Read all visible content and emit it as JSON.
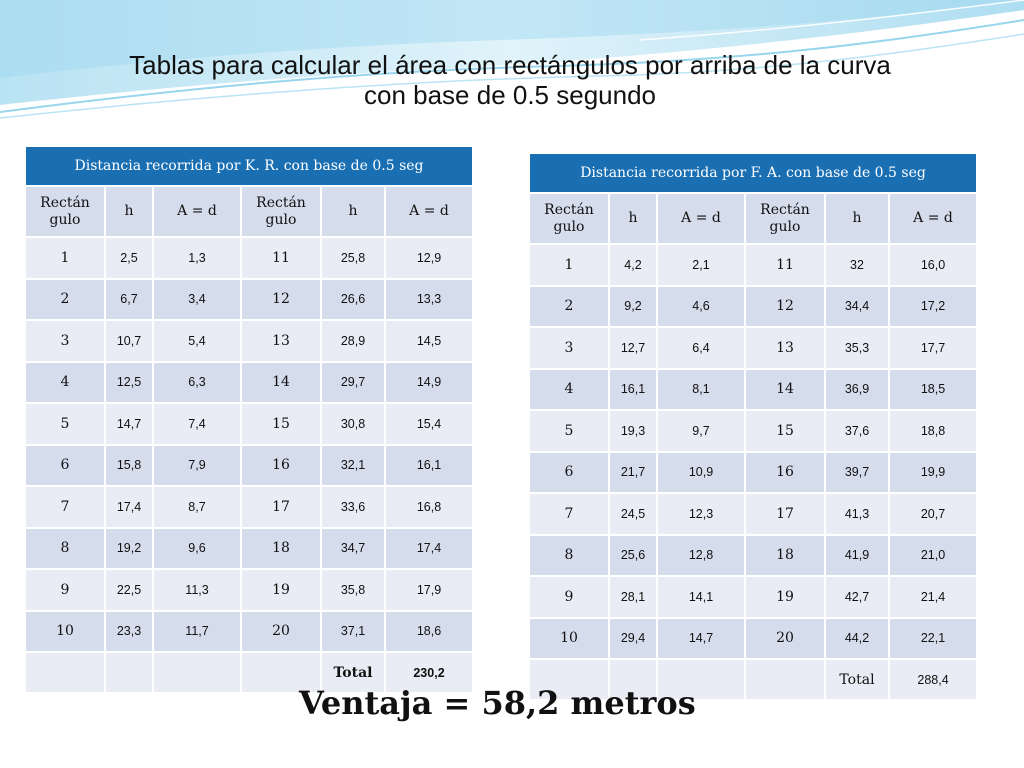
{
  "title": {
    "line1": "Tablas para calcular el área con rectángulos por arriba de la curva",
    "line2": "con base de 0.5 segundo"
  },
  "colors": {
    "table_header": "#1a6fb3",
    "row_dark": "#d5dcec",
    "row_light": "#e9ecf4",
    "wave_light": "#bfe3f3",
    "wave_dark": "#5ab8e0"
  },
  "table_kr": {
    "caption": "Distancia recorrida por K. R. con base de 0.5 seg",
    "headers": [
      "Rectán gulo",
      "h",
      "A = d",
      "Rectán gulo",
      "h",
      "A = d"
    ],
    "rows": [
      [
        "1",
        "2,5",
        "1,3",
        "11",
        "25,8",
        "12,9"
      ],
      [
        "2",
        "6,7",
        "3,4",
        "12",
        "26,6",
        "13,3"
      ],
      [
        "3",
        "10,7",
        "5,4",
        "13",
        "28,9",
        "14,5"
      ],
      [
        "4",
        "12,5",
        "6,3",
        "14",
        "29,7",
        "14,9"
      ],
      [
        "5",
        "14,7",
        "7,4",
        "15",
        "30,8",
        "15,4"
      ],
      [
        "6",
        "15,8",
        "7,9",
        "16",
        "32,1",
        "16,1"
      ],
      [
        "7",
        "17,4",
        "8,7",
        "17",
        "33,6",
        "16,8"
      ],
      [
        "8",
        "19,2",
        "9,6",
        "18",
        "34,7",
        "17,4"
      ],
      [
        "9",
        "22,5",
        "11,3",
        "19",
        "35,8",
        "17,9"
      ],
      [
        "10",
        "23,3",
        "11,7",
        "20",
        "37,1",
        "18,6"
      ]
    ],
    "total_label": "Total",
    "total_value": "230,2"
  },
  "table_fa": {
    "caption": "Distancia recorrida por  F. A. con base de 0.5 seg",
    "headers": [
      "Rectán gulo",
      "h",
      "A = d",
      "Rectán gulo",
      "h",
      "A = d"
    ],
    "rows": [
      [
        "1",
        "4,2",
        "2,1",
        "11",
        "32",
        "16,0"
      ],
      [
        "2",
        "9,2",
        "4,6",
        "12",
        "34,4",
        "17,2"
      ],
      [
        "3",
        "12,7",
        "6,4",
        "13",
        "35,3",
        "17,7"
      ],
      [
        "4",
        "16,1",
        "8,1",
        "14",
        "36,9",
        "18,5"
      ],
      [
        "5",
        "19,3",
        "9,7",
        "15",
        "37,6",
        "18,8"
      ],
      [
        "6",
        "21,7",
        "10,9",
        "16",
        "39,7",
        "19,9"
      ],
      [
        "7",
        "24,5",
        "12,3",
        "17",
        "41,3",
        "20,7"
      ],
      [
        "8",
        "25,6",
        "12,8",
        "18",
        "41,9",
        "21,0"
      ],
      [
        "9",
        "28,1",
        "14,1",
        "19",
        "42,7",
        "21,4"
      ],
      [
        "10",
        "29,4",
        "14,7",
        "20",
        "44,2",
        "22,1"
      ]
    ],
    "total_label": "Total",
    "total_value": "288,4"
  },
  "ventaja": "Ventaja = 58,2 metros"
}
